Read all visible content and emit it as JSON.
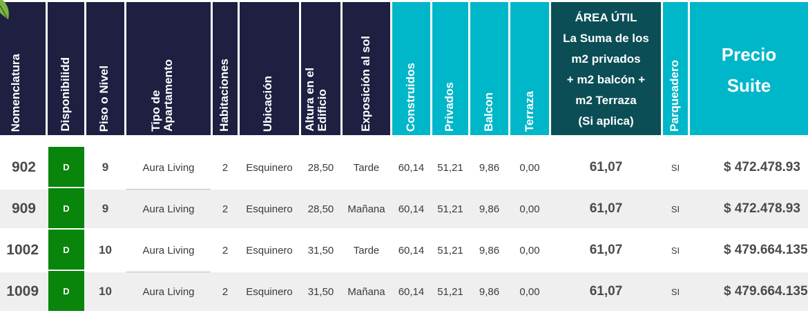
{
  "headers": {
    "nomenclatura": "Nomenclatura",
    "disponibilidad": "Disponibilidd",
    "piso": "Piso o Nivel",
    "tipo": "Tipo de\nApartamento",
    "habitaciones": "Habitaciones",
    "ubicacion": "Ubicación",
    "altura": "Altura en el\nEdificio",
    "exposicion": "Exposición al sol",
    "construidos": "Construidos",
    "privados": "Privados",
    "balcon": "Balcon",
    "terraza": "Terraza",
    "area_util": "ÁREA ÚTIL\nLa Suma de los\nm2 privados\n+ m2 balcón +\nm2 Terraza\n(Si aplica)",
    "parqueadero": "Parqueadero",
    "precio": "Precio\nSuite"
  },
  "colors": {
    "header_dark": "#1e1f41",
    "header_cyan": "#00b7c9",
    "header_teal": "#0b4e56",
    "available_badge": "#08850a",
    "row_alt": "#efefef"
  },
  "rows": [
    {
      "nomenclatura": "902",
      "disponibilidad": "D",
      "piso": "9",
      "tipo": "Aura Living",
      "habitaciones": "2",
      "ubicacion": "Esquinero",
      "altura": "28,50",
      "exposicion": "Tarde",
      "construidos": "60,14",
      "privados": "51,21",
      "balcon": "9,86",
      "terraza": "0,00",
      "area_util": "61,07",
      "parqueadero": "SI",
      "precio": "$ 472.478.93"
    },
    {
      "nomenclatura": "909",
      "disponibilidad": "D",
      "piso": "9",
      "tipo": "Aura Living",
      "habitaciones": "2",
      "ubicacion": "Esquinero",
      "altura": "28,50",
      "exposicion": "Mañana",
      "construidos": "60,14",
      "privados": "51,21",
      "balcon": "9,86",
      "terraza": "0,00",
      "area_util": "61,07",
      "parqueadero": "SI",
      "precio": "$ 472.478.93"
    },
    {
      "nomenclatura": "1002",
      "disponibilidad": "D",
      "piso": "10",
      "tipo": "Aura Living",
      "habitaciones": "2",
      "ubicacion": "Esquinero",
      "altura": "31,50",
      "exposicion": "Tarde",
      "construidos": "60,14",
      "privados": "51,21",
      "balcon": "9,86",
      "terraza": "0,00",
      "area_util": "61,07",
      "parqueadero": "SI",
      "precio": "$ 479.664.135"
    },
    {
      "nomenclatura": "1009",
      "disponibilidad": "D",
      "piso": "10",
      "tipo": "Aura Living",
      "habitaciones": "2",
      "ubicacion": "Esquinero",
      "altura": "31,50",
      "exposicion": "Mañana",
      "construidos": "60,14",
      "privados": "51,21",
      "balcon": "9,86",
      "terraza": "0,00",
      "area_util": "61,07",
      "parqueadero": "SI",
      "precio": "$ 479.664.135"
    }
  ]
}
